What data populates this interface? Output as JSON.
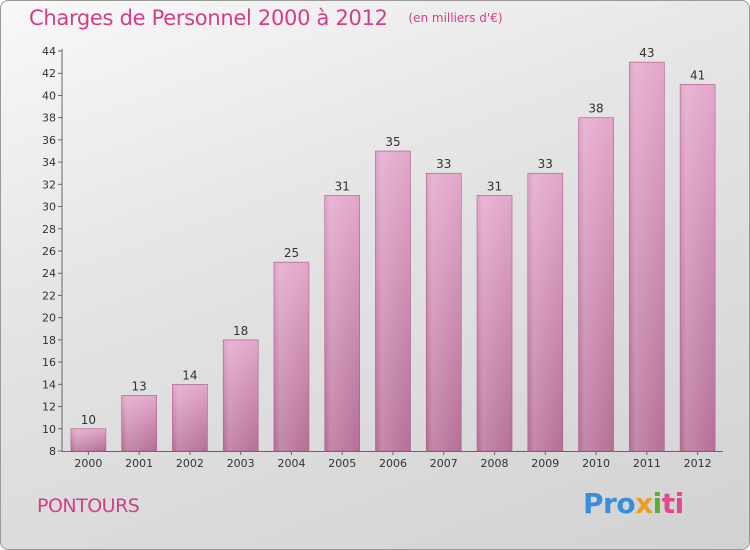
{
  "title": "Charges de Personnel 2000 à 2012",
  "unit": "(en milliers d'€)",
  "location": "PONTOURS",
  "logo": {
    "p1": "Pro",
    "p2": "x",
    "p3": "i",
    "p4": "ti"
  },
  "colors": {
    "bar": "#d98fba",
    "title": "#d43d8a"
  },
  "chart_data": {
    "type": "bar",
    "title": "Charges de Personnel 2000 à 2012",
    "subtitle": "(en milliers d'€)",
    "categories": [
      "2000",
      "2001",
      "2002",
      "2003",
      "2004",
      "2005",
      "2006",
      "2007",
      "2008",
      "2009",
      "2010",
      "2011",
      "2012"
    ],
    "values": [
      10,
      13,
      14,
      18,
      25,
      31,
      35,
      33,
      31,
      33,
      38,
      43,
      41
    ],
    "ylim": [
      8,
      44
    ],
    "yticks": [
      8,
      10,
      12,
      14,
      16,
      18,
      20,
      22,
      24,
      26,
      28,
      30,
      32,
      34,
      36,
      38,
      40,
      42,
      44
    ],
    "grid": false,
    "data_labels": true
  }
}
